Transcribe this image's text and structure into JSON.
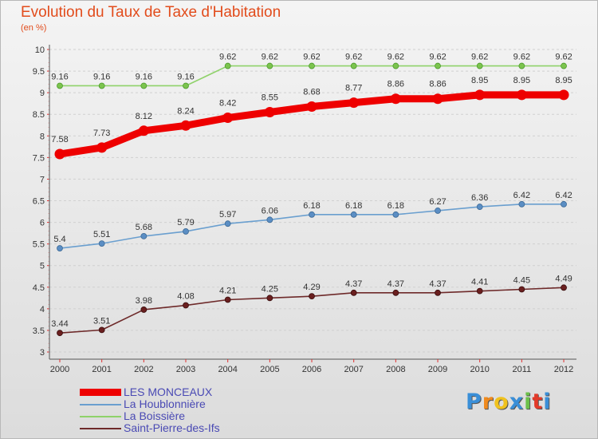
{
  "chart_data": {
    "type": "line",
    "title": "Evolution du Taux de Taxe d'Habitation",
    "subtitle": "(en %)",
    "x": [
      "2000",
      "2001",
      "2002",
      "2003",
      "2004",
      "2005",
      "2006",
      "2007",
      "2008",
      "2009",
      "2010",
      "2011",
      "2012"
    ],
    "ylim": [
      3,
      10
    ],
    "yticks": [
      "3",
      "3.5",
      "4",
      "4.5",
      "5",
      "5.5",
      "6",
      "6.5",
      "7",
      "7.5",
      "8",
      "8.5",
      "9",
      "9.5",
      "10"
    ],
    "grid": "horizontal-dashed",
    "legend_position": "bottom-left",
    "series": [
      {
        "name": "LES MONCEAUX",
        "color": "#ee0000",
        "values": [
          7.58,
          7.73,
          8.12,
          8.24,
          8.42,
          8.55,
          8.68,
          8.77,
          8.86,
          8.86,
          8.95,
          8.95,
          8.95
        ],
        "labels": [
          "7.58",
          "7.73",
          "8.12",
          "8.24",
          "8.42",
          "8.55",
          "8.68",
          "8.77",
          "8.86",
          "8.86",
          "8.95",
          "8.95",
          "8.95"
        ]
      },
      {
        "name": "La Houblonnière",
        "color": "#6a9fcf",
        "values": [
          5.4,
          5.51,
          5.68,
          5.79,
          5.97,
          6.06,
          6.18,
          6.18,
          6.18,
          6.27,
          6.36,
          6.42,
          6.42
        ],
        "labels": [
          "5.4",
          "5.51",
          "5.68",
          "5.79",
          "5.97",
          "6.06",
          "6.18",
          "6.18",
          "6.18",
          "6.27",
          "6.36",
          "6.42",
          "6.42"
        ]
      },
      {
        "name": "La Boissière",
        "color": "#8fd26a",
        "values": [
          9.16,
          9.16,
          9.16,
          9.16,
          9.62,
          9.62,
          9.62,
          9.62,
          9.62,
          9.62,
          9.62,
          9.62,
          9.62
        ],
        "labels": [
          "9.16",
          "9.16",
          "9.16",
          "9.16",
          "9.62",
          "9.62",
          "9.62",
          "9.62",
          "9.62",
          "9.62",
          "9.62",
          "9.62",
          "9.62"
        ]
      },
      {
        "name": "Saint-Pierre-des-Ifs",
        "color": "#6e2a2a",
        "values": [
          3.44,
          3.51,
          3.98,
          4.08,
          4.21,
          4.25,
          4.29,
          4.37,
          4.37,
          4.37,
          4.41,
          4.45,
          4.49
        ],
        "labels": [
          "3.44",
          "3.51",
          "3.98",
          "4.08",
          "4.21",
          "4.25",
          "4.29",
          "4.37",
          "4.37",
          "4.37",
          "4.41",
          "4.45",
          "4.49"
        ]
      }
    ]
  },
  "branding": {
    "logo_letters": [
      "P",
      "r",
      "o",
      "x",
      "i",
      "t",
      "i"
    ],
    "logo_colors": [
      "#3a8fd8",
      "#f08a1e",
      "#f0c21e",
      "#3a8fd8",
      "#6cc04a",
      "#e23a2a",
      "#3a8fd8"
    ]
  }
}
